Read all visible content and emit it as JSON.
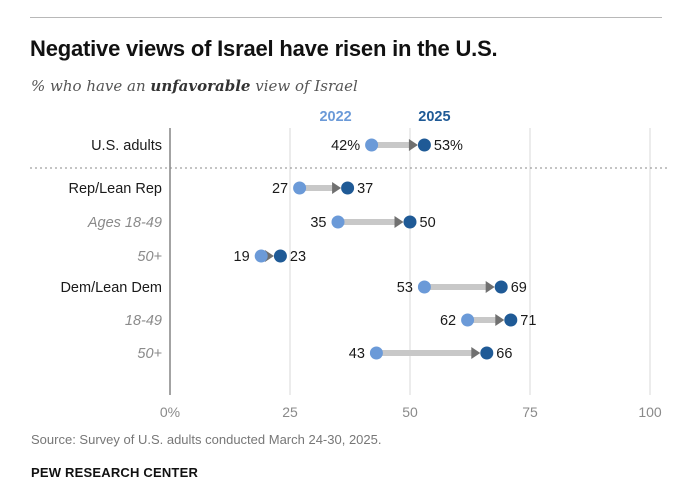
{
  "header": {
    "title": "Negative views of Israel have risen in the U.S.",
    "subtitle_prefix": "% who have an ",
    "subtitle_emphasis": "unfavorable",
    "subtitle_suffix": " view of Israel"
  },
  "footer": {
    "source": "Source: Survey of U.S. adults conducted March 24-30, 2025.",
    "brand": "PEW RESEARCH CENTER"
  },
  "colors": {
    "series_2022": "#6b9ad8",
    "series_2025": "#1f5a96",
    "arrow": "#c8c8c8",
    "arrowhead": "#707070",
    "axis": "#666666",
    "grid": "#d9d9d9",
    "divider": "#888888"
  },
  "chart_data": {
    "type": "dot-arrow",
    "legend": [
      "2022",
      "2025"
    ],
    "xlim": [
      0,
      100
    ],
    "xticks": [
      0,
      25,
      50,
      75,
      100
    ],
    "xtick_labels": [
      "0%",
      "25",
      "50",
      "75",
      "100"
    ],
    "grid": true,
    "rows": [
      {
        "label": "U.S. adults",
        "style": "normal",
        "v2022": 42,
        "v2025": 53,
        "label_2022": "42%",
        "label_2025": "53%"
      },
      {
        "label": "Rep/Lean Rep",
        "style": "normal",
        "v2022": 27,
        "v2025": 37,
        "label_2022": "27",
        "label_2025": "37"
      },
      {
        "label": "Ages 18-49",
        "style": "italic",
        "v2022": 35,
        "v2025": 50,
        "label_2022": "35",
        "label_2025": "50"
      },
      {
        "label": "50+",
        "style": "italic",
        "v2022": 19,
        "v2025": 23,
        "label_2022": "19",
        "label_2025": "23"
      },
      {
        "label": "Dem/Lean Dem",
        "style": "normal",
        "v2022": 53,
        "v2025": 69,
        "label_2022": "53",
        "label_2025": "69"
      },
      {
        "label": "18-49",
        "style": "italic",
        "v2022": 62,
        "v2025": 71,
        "label_2022": "62",
        "label_2025": "71"
      },
      {
        "label": "50+",
        "style": "italic",
        "v2022": 43,
        "v2025": 66,
        "label_2022": "43",
        "label_2025": "66"
      }
    ]
  }
}
